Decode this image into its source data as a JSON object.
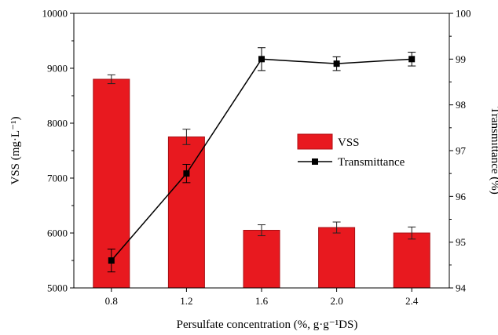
{
  "chart_data": {
    "type": "bar",
    "categories": [
      "0.8",
      "1.2",
      "1.6",
      "2.0",
      "2.4"
    ],
    "series": [
      {
        "name": "VSS",
        "kind": "bar",
        "axis": "left",
        "color": "#e8191f",
        "values": [
          8800,
          7750,
          6050,
          6100,
          6000
        ],
        "errors": [
          80,
          140,
          100,
          100,
          110
        ]
      },
      {
        "name": "Transmittance",
        "kind": "line",
        "axis": "right",
        "color": "#000000",
        "marker": "square",
        "values": [
          94.6,
          96.5,
          99.0,
          98.9,
          99.0
        ],
        "errors": [
          0.25,
          0.2,
          0.25,
          0.15,
          0.15
        ]
      }
    ],
    "xlabel": "Persulfate concentration (%, g·g⁻¹DS)",
    "ylabel_left": "VSS (mg·L⁻¹)",
    "ylabel_right": "Transmittance (%)",
    "ylim_left": [
      5000,
      10000
    ],
    "yticks_left": [
      5000,
      6000,
      7000,
      8000,
      9000,
      10000
    ],
    "ylim_right": [
      94,
      100
    ],
    "yticks_right": [
      94,
      95,
      96,
      97,
      98,
      99,
      100
    ],
    "grid": false,
    "legend_position": "center-right"
  }
}
